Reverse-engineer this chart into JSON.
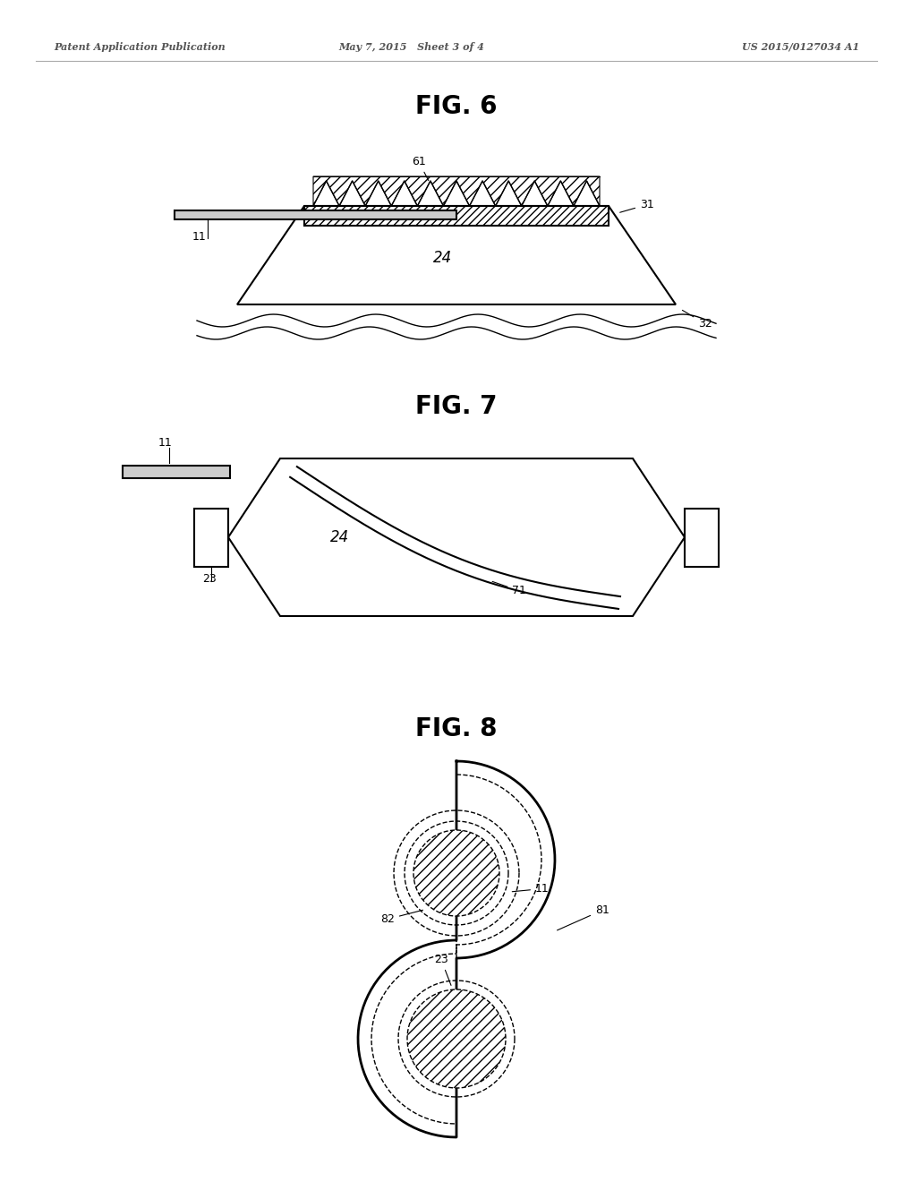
{
  "header_left": "Patent Application Publication",
  "header_mid": "May 7, 2015   Sheet 3 of 4",
  "header_right": "US 2015/0127034 A1",
  "fig6_title": "FIG. 6",
  "fig7_title": "FIG. 7",
  "fig8_title": "FIG. 8",
  "background_color": "#ffffff",
  "line_color": "#000000"
}
